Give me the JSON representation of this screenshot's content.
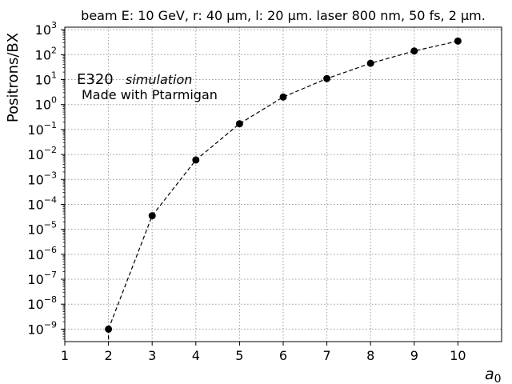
{
  "chart_data": {
    "type": "scatter",
    "title": "beam E: 10 GeV, r: 40 μm, l: 20 μm. laser 800 nm, 50 fs, 2 μm.",
    "xlabel": "a",
    "xlabel_sub": "0",
    "ylabel": "Positrons/BX",
    "xlim": [
      1,
      11
    ],
    "ylim_log10": [
      -9.5,
      3.1
    ],
    "y_scale": "log",
    "grid": true,
    "grid_style": "dotted",
    "x_ticks": [
      1,
      2,
      3,
      4,
      5,
      6,
      7,
      8,
      9,
      10
    ],
    "y_tick_exponents": [
      -9,
      -8,
      -7,
      -6,
      -5,
      -4,
      -3,
      -2,
      -1,
      0,
      1,
      2,
      3
    ],
    "line_style": "dashed",
    "marker_color": "#000000",
    "series": [
      {
        "x": [
          2,
          3,
          4,
          5,
          6,
          7,
          8,
          9,
          10
        ],
        "y": [
          1e-09,
          3.5e-05,
          0.006,
          0.17,
          2.0,
          11,
          45,
          140,
          350
        ]
      }
    ],
    "annotations": {
      "label_main": "E320",
      "label_italic": "simulation",
      "label_sub": "Made with Ptarmigan"
    }
  }
}
